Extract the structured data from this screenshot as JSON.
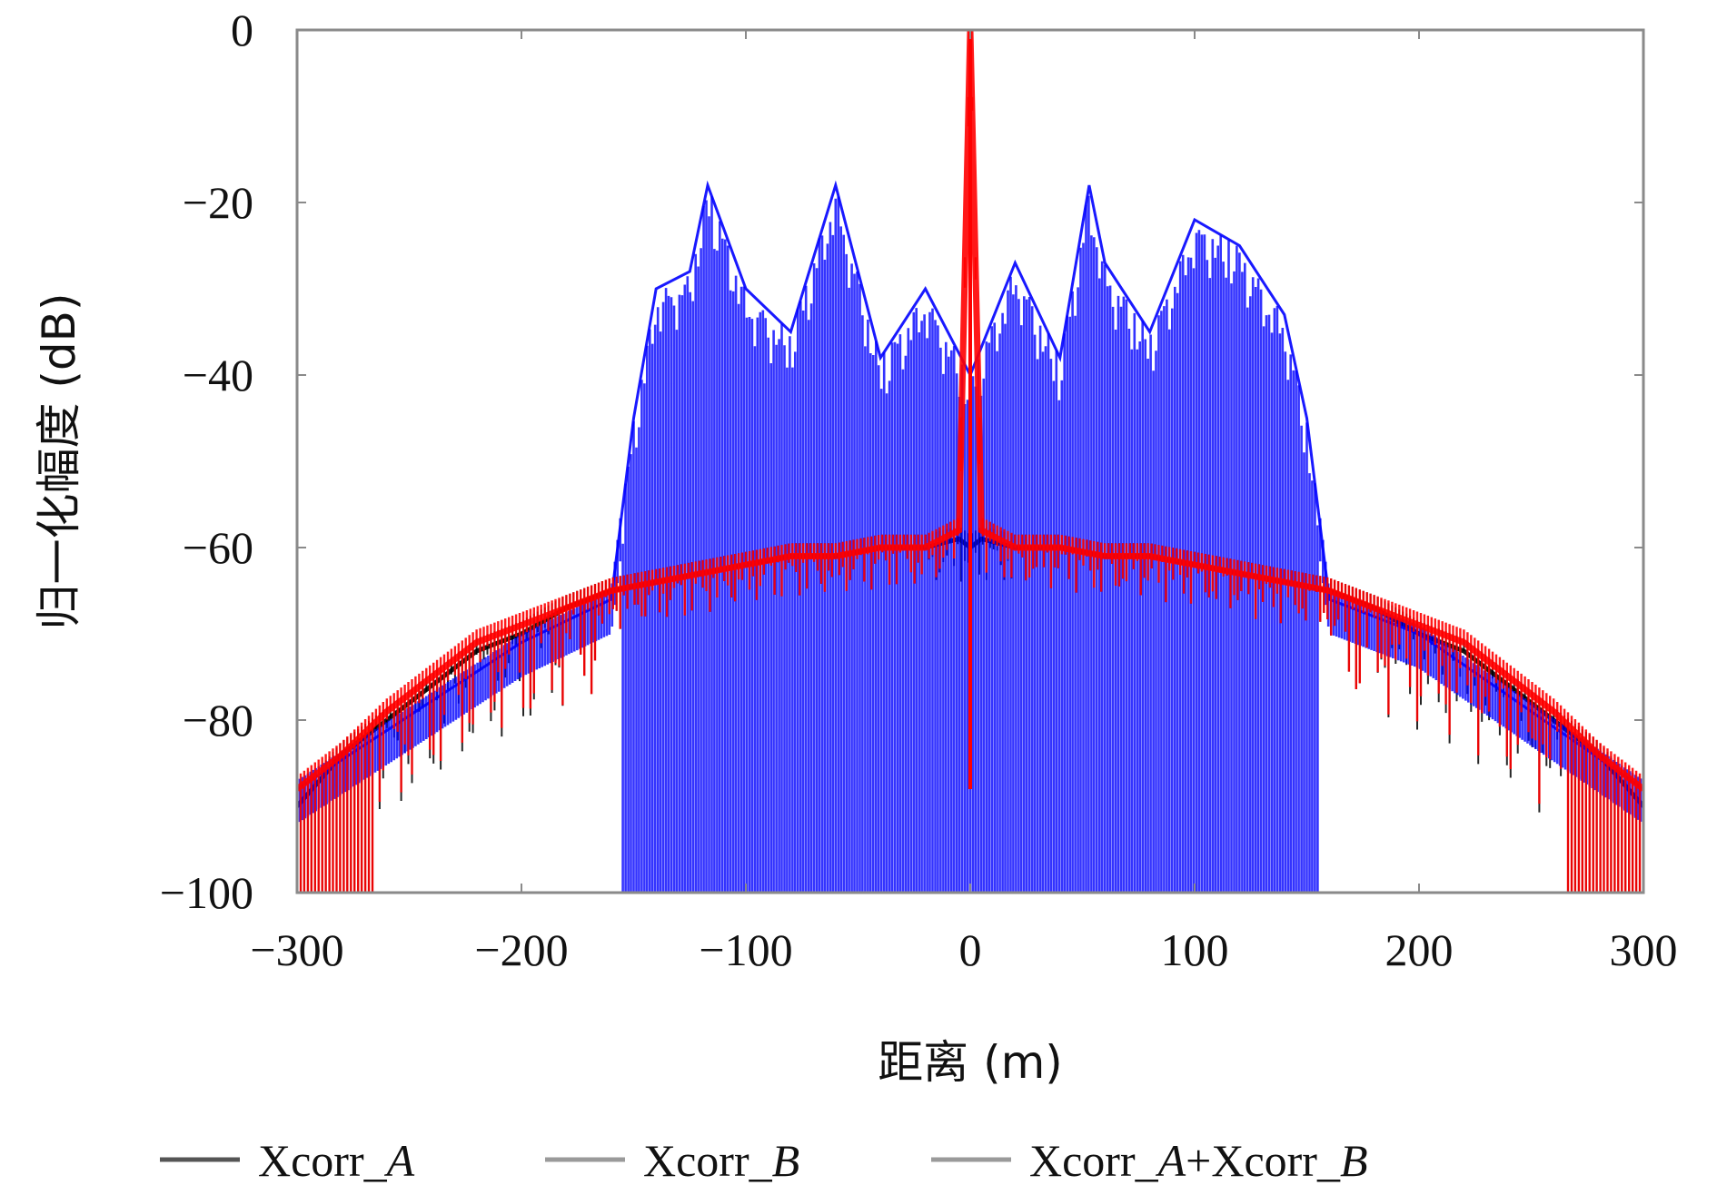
{
  "chart_data": {
    "type": "line",
    "title": "",
    "xlabel": "距离 (m)",
    "ylabel": "归一化幅度 (dB)",
    "xlim": [
      -300,
      300
    ],
    "ylim": [
      -100,
      0
    ],
    "xticks": [
      -300,
      -200,
      -100,
      0,
      100,
      200,
      300
    ],
    "yticks": [
      0,
      -20,
      -40,
      -60,
      -80,
      -100
    ],
    "xtick_labels": [
      "−300",
      "−200",
      "−100",
      "0",
      "100",
      "200",
      "300"
    ],
    "ytick_labels": [
      "0",
      "−20",
      "−40",
      "−60",
      "−80",
      "−100"
    ],
    "grid": false,
    "legend_position": "bottom",
    "legend": [
      {
        "text": "Xcorr_A",
        "plain": "Xcorr_",
        "italic": "A"
      },
      {
        "text": "Xcorr_B",
        "plain": "Xcorr_",
        "italic": "B"
      },
      {
        "text": "Xcorr_A+Xcorr_B",
        "plain": "Xcorr_",
        "italic": "A",
        "plain2": "+Xcorr_",
        "italic2": "B"
      }
    ],
    "series": [
      {
        "name": "Xcorr_A",
        "color": "#000000",
        "x": [
          -300,
          -280,
          -260,
          -240,
          -220,
          -200,
          -180,
          -160,
          -140,
          -120,
          -100,
          -80,
          -60,
          -40,
          -20,
          -5,
          0,
          5,
          20,
          40,
          60,
          80,
          100,
          120,
          140,
          160,
          180,
          200,
          220,
          240,
          260,
          280,
          300
        ],
        "y": [
          -90,
          -84,
          -80,
          -76,
          -72,
          -70,
          -67,
          -65,
          -64,
          -63,
          -62,
          -61,
          -61,
          -60,
          -60,
          -59,
          -60,
          -59,
          -60,
          -60,
          -61,
          -61,
          -62,
          -63,
          -64,
          -65,
          -67,
          -70,
          -72,
          -76,
          -80,
          -84,
          -90
        ]
      },
      {
        "name": "Xcorr_B",
        "color": "#0000ff",
        "x": [
          -300,
          -200,
          -160,
          -150,
          -140,
          -125,
          -117,
          -100,
          -80,
          -60,
          -40,
          -20,
          0,
          20,
          40,
          53,
          60,
          80,
          100,
          120,
          140,
          150,
          160,
          200,
          300
        ],
        "y": [
          -88,
          -71,
          -66,
          -45,
          -30,
          -28,
          -18,
          -30,
          -35,
          -18,
          -38,
          -30,
          -40,
          -27,
          -38,
          -18,
          -27,
          -35,
          -22,
          -25,
          -33,
          -45,
          -66,
          -70,
          -88
        ]
      },
      {
        "name": "Xcorr_A+Xcorr_B",
        "color": "#ff0000",
        "x": [
          -300,
          -280,
          -260,
          -240,
          -220,
          -200,
          -180,
          -160,
          -140,
          -120,
          -100,
          -80,
          -60,
          -40,
          -20,
          -5,
          0,
          5,
          20,
          40,
          60,
          80,
          100,
          120,
          140,
          160,
          180,
          200,
          220,
          240,
          260,
          280,
          300
        ],
        "y": [
          -88,
          -84,
          -79,
          -75,
          -71,
          -69,
          -67,
          -65,
          -64,
          -63,
          -62,
          -61,
          -61,
          -60,
          -60,
          -58,
          0,
          -58,
          -60,
          -60,
          -61,
          -61,
          -62,
          -63,
          -64,
          -65,
          -67,
          -69,
          -71,
          -75,
          -79,
          -84,
          -88
        ]
      }
    ]
  }
}
